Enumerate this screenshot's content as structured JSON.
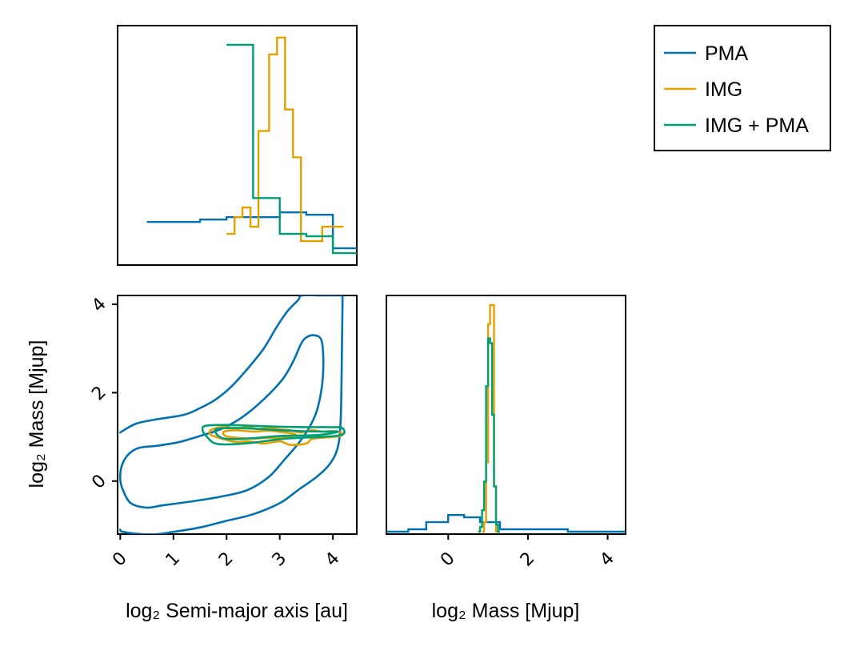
{
  "chart_data": {
    "type": "corner",
    "colors": {
      "PMA": "#0072b2",
      "IMG": "#e69f00",
      "IMG + PMA": "#009e73"
    },
    "legend": {
      "position": "top-right",
      "entries": [
        {
          "name": "PMA",
          "color": "#0072b2"
        },
        {
          "name": "IMG",
          "color": "#e69f00"
        },
        {
          "name": "IMG + PMA",
          "color": "#009e73"
        }
      ]
    },
    "panels": {
      "hist_sma": {
        "type": "step-histogram",
        "xlim": [
          -0.05,
          4.45
        ],
        "ylim": [
          0,
          1.0
        ],
        "series": [
          {
            "name": "PMA",
            "color": "#0072b2",
            "edges": [
              0.5,
              0.55,
              1.0,
              1.5,
              2.0,
              2.5,
              3.0,
              3.5,
              4.0,
              4.15,
              4.45
            ],
            "values": [
              0.18,
              0.18,
              0.18,
              0.19,
              0.2,
              0.2,
              0.22,
              0.21,
              0.07,
              0.07
            ]
          },
          {
            "name": "IMG",
            "color": "#e69f00",
            "edges": [
              2.0,
              2.15,
              2.3,
              2.45,
              2.6,
              2.8,
              2.95,
              3.1,
              3.25,
              3.4,
              3.6,
              3.8,
              4.0,
              4.2
            ],
            "values": [
              0.13,
              0.2,
              0.24,
              0.16,
              0.56,
              0.88,
              0.95,
              0.65,
              0.45,
              0.1,
              0.1,
              0.16,
              0.16
            ]
          },
          {
            "name": "IMG + PMA",
            "color": "#009e73",
            "edges": [
              2.0,
              2.5,
              3.0,
              3.5,
              4.0,
              4.45
            ],
            "values": [
              0.92,
              0.28,
              0.13,
              0.12,
              0.05
            ]
          }
        ]
      },
      "contour_joint": {
        "xlim": [
          -0.05,
          4.45
        ],
        "ylim": [
          -1.2,
          4.2
        ],
        "xticks": [
          0,
          1,
          2,
          3,
          4
        ],
        "yticks": [
          0,
          2,
          4
        ],
        "xlabel": "log₂ Semi-major axis [au]",
        "ylabel": "log₂ Mass [Mjup]",
        "contours": [
          {
            "name": "PMA",
            "color": "#0072b2",
            "level": "outer",
            "closed": false,
            "points": [
              [
                0,
                1.1
              ],
              [
                0.3,
                1.3
              ],
              [
                0.7,
                1.4
              ],
              [
                1.2,
                1.5
              ],
              [
                1.5,
                1.65
              ],
              [
                1.8,
                1.85
              ],
              [
                2.1,
                2.15
              ],
              [
                2.4,
                2.55
              ],
              [
                2.7,
                3.0
              ],
              [
                2.95,
                3.5
              ],
              [
                3.15,
                3.85
              ],
              [
                3.35,
                4.1
              ],
              [
                3.42,
                4.2
              ],
              [
                3.8,
                4.2
              ],
              [
                4.15,
                4.2
              ],
              [
                4.18,
                4.2
              ],
              [
                4.17,
                3.0
              ],
              [
                4.15,
                1.5
              ],
              [
                4.1,
                0.8
              ],
              [
                3.95,
                0.4
              ],
              [
                3.7,
                0.1
              ],
              [
                3.35,
                -0.2
              ],
              [
                3.0,
                -0.5
              ],
              [
                2.5,
                -0.75
              ],
              [
                2.0,
                -0.9
              ],
              [
                1.5,
                -1.05
              ],
              [
                1.0,
                -1.15
              ],
              [
                0.7,
                -1.2
              ],
              [
                0.4,
                -1.2
              ],
              [
                0.05,
                -1.15
              ],
              [
                0,
                -1.1
              ]
            ]
          },
          {
            "name": "PMA",
            "color": "#0072b2",
            "level": "inner",
            "closed": true,
            "points": [
              [
                3.65,
                3.3
              ],
              [
                3.78,
                3.2
              ],
              [
                3.82,
                2.8
              ],
              [
                3.8,
                2.2
              ],
              [
                3.7,
                1.6
              ],
              [
                3.55,
                1.2
              ],
              [
                3.35,
                0.85
              ],
              [
                3.1,
                0.5
              ],
              [
                2.8,
                0.1
              ],
              [
                2.4,
                -0.2
              ],
              [
                1.9,
                -0.35
              ],
              [
                1.4,
                -0.45
              ],
              [
                0.8,
                -0.55
              ],
              [
                0.5,
                -0.6
              ],
              [
                0.2,
                -0.5
              ],
              [
                0.05,
                -0.2
              ],
              [
                0,
                0.05
              ],
              [
                0.03,
                0.35
              ],
              [
                0.15,
                0.6
              ],
              [
                0.35,
                0.75
              ],
              [
                0.7,
                0.8
              ],
              [
                1.1,
                0.88
              ],
              [
                1.5,
                1.02
              ],
              [
                1.9,
                1.18
              ],
              [
                2.3,
                1.45
              ],
              [
                2.7,
                1.85
              ],
              [
                3.05,
                2.3
              ],
              [
                3.25,
                2.7
              ],
              [
                3.4,
                3.1
              ],
              [
                3.5,
                3.25
              ]
            ]
          },
          {
            "name": "IMG",
            "color": "#e69f00",
            "level": "outer",
            "closed": true,
            "points": [
              [
                1.7,
                1.15
              ],
              [
                1.9,
                1.22
              ],
              [
                2.2,
                1.2
              ],
              [
                2.4,
                1.22
              ],
              [
                2.6,
                1.18
              ],
              [
                2.8,
                1.2
              ],
              [
                3.0,
                1.17
              ],
              [
                3.2,
                1.15
              ],
              [
                3.4,
                1.1
              ],
              [
                3.6,
                1.15
              ],
              [
                3.8,
                1.12
              ],
              [
                4.0,
                1.13
              ],
              [
                4.15,
                1.1
              ],
              [
                4.15,
                1.02
              ],
              [
                4.0,
                1.0
              ],
              [
                3.8,
                0.98
              ],
              [
                3.6,
                0.95
              ],
              [
                3.5,
                0.85
              ],
              [
                3.2,
                0.82
              ],
              [
                3.0,
                0.9
              ],
              [
                2.7,
                0.85
              ],
              [
                2.4,
                0.9
              ],
              [
                2.2,
                0.88
              ],
              [
                2.0,
                0.93
              ],
              [
                1.8,
                1.0
              ],
              [
                1.7,
                1.05
              ]
            ]
          },
          {
            "name": "IMG",
            "color": "#e69f00",
            "level": "inner",
            "closed": true,
            "points": [
              [
                1.95,
                1.12
              ],
              [
                2.2,
                1.15
              ],
              [
                2.5,
                1.12
              ],
              [
                2.8,
                1.14
              ],
              [
                3.1,
                1.1
              ],
              [
                3.3,
                1.05
              ],
              [
                3.1,
                0.98
              ],
              [
                2.8,
                0.98
              ],
              [
                2.5,
                0.96
              ],
              [
                2.2,
                0.98
              ],
              [
                1.98,
                1.02
              ]
            ]
          },
          {
            "name": "IMG + PMA",
            "color": "#009e73",
            "level": "outer",
            "closed": true,
            "points": [
              [
                1.6,
                1.25
              ],
              [
                2.0,
                1.27
              ],
              [
                2.5,
                1.25
              ],
              [
                3.0,
                1.23
              ],
              [
                3.5,
                1.22
              ],
              [
                4.0,
                1.22
              ],
              [
                4.18,
                1.2
              ],
              [
                4.18,
                1.05
              ],
              [
                3.8,
                1.0
              ],
              [
                3.4,
                0.98
              ],
              [
                3.0,
                0.95
              ],
              [
                2.5,
                0.87
              ],
              [
                2.0,
                0.83
              ],
              [
                1.75,
                0.87
              ],
              [
                1.6,
                1.05
              ],
              [
                1.55,
                1.15
              ]
            ]
          },
          {
            "name": "IMG + PMA",
            "color": "#009e73",
            "level": "inner",
            "closed": true,
            "points": [
              [
                1.8,
                1.17
              ],
              [
                2.2,
                1.2
              ],
              [
                2.6,
                1.18
              ],
              [
                3.0,
                1.15
              ],
              [
                3.4,
                1.13
              ],
              [
                3.8,
                1.12
              ],
              [
                4.1,
                1.12
              ],
              [
                3.8,
                1.05
              ],
              [
                3.4,
                1.03
              ],
              [
                3.0,
                1.02
              ],
              [
                2.6,
                0.98
              ],
              [
                2.2,
                0.95
              ],
              [
                1.9,
                0.98
              ]
            ]
          }
        ]
      },
      "hist_mass": {
        "type": "step-histogram",
        "xlim": [
          -1.55,
          4.45
        ],
        "ylim": [
          0,
          1.0
        ],
        "xticks": [
          0,
          2,
          4
        ],
        "xlabel": "log₂ Mass [Mjup]",
        "series": [
          {
            "name": "PMA",
            "color": "#0072b2",
            "edges": [
              -1.55,
              -1.0,
              -0.55,
              0.0,
              0.4,
              0.8,
              1.3,
              2.0,
              3.0,
              3.9,
              4.45
            ],
            "values": [
              0.01,
              0.02,
              0.05,
              0.08,
              0.07,
              0.05,
              0.02,
              0.02,
              0.01,
              0.01
            ]
          },
          {
            "name": "IMG",
            "color": "#e69f00",
            "edges": [
              0.85,
              0.9,
              0.95,
              1.0,
              1.05,
              1.1,
              1.15,
              1.2,
              1.25
            ],
            "values": [
              0.01,
              0.05,
              0.3,
              0.88,
              0.96,
              0.96,
              0.2,
              0.01
            ]
          },
          {
            "name": "IMG + PMA",
            "color": "#009e73",
            "edges": [
              0.75,
              0.8,
              0.85,
              0.9,
              0.95,
              1.0,
              1.05,
              1.1,
              1.15,
              1.2,
              1.25,
              1.3
            ],
            "values": [
              0.01,
              0.03,
              0.1,
              0.22,
              0.62,
              0.82,
              0.8,
              0.5,
              0.2,
              0.04,
              0.01
            ]
          }
        ]
      }
    }
  }
}
